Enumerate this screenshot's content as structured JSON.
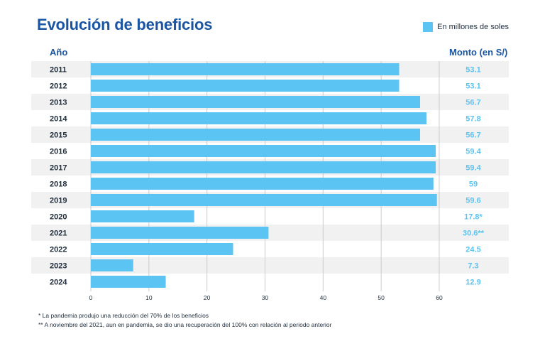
{
  "title": "Evolución de beneficios",
  "legend": {
    "label": "En millones de soles",
    "color": "#5bc4f3"
  },
  "columns": {
    "year": "Año",
    "amount": "Monto (en S/)"
  },
  "colors": {
    "bar": "#5bc4f3",
    "title": "#1a55a3",
    "value": "#5bc4f3",
    "stripe": "#f1f1f1",
    "grid": "#cccccc"
  },
  "chart_data": {
    "type": "bar",
    "orientation": "horizontal",
    "categories": [
      "2011",
      "2012",
      "2013",
      "2014",
      "2015",
      "2016",
      "2017",
      "2018",
      "2019",
      "2020",
      "2021",
      "2022",
      "2023",
      "2024"
    ],
    "values": [
      53.1,
      53.1,
      56.7,
      57.8,
      56.7,
      59.4,
      59.4,
      59,
      59.6,
      17.8,
      30.6,
      24.5,
      7.3,
      12.9
    ],
    "value_labels": [
      "53.1",
      "53.1",
      "56.7",
      "57.8",
      "56.7",
      "59.4",
      "59.4",
      "59",
      "59.6",
      "17.8*",
      "30.6**",
      "24.5",
      "7.3",
      "12.9"
    ],
    "xlim": [
      0,
      60
    ],
    "xticks": [
      "0",
      "10",
      "20",
      "30",
      "40",
      "50",
      "60"
    ],
    "title": "Evolución de beneficios",
    "xlabel": "",
    "ylabel": "Año",
    "grid": true,
    "legend": "top-right"
  },
  "footnotes": [
    "* La pandemia produjo una reducción del 70% de los beneficios",
    "** A noviembre del 2021, aun en pandemia, se dio una recuperación del 100% con relación al periodo anterior"
  ]
}
